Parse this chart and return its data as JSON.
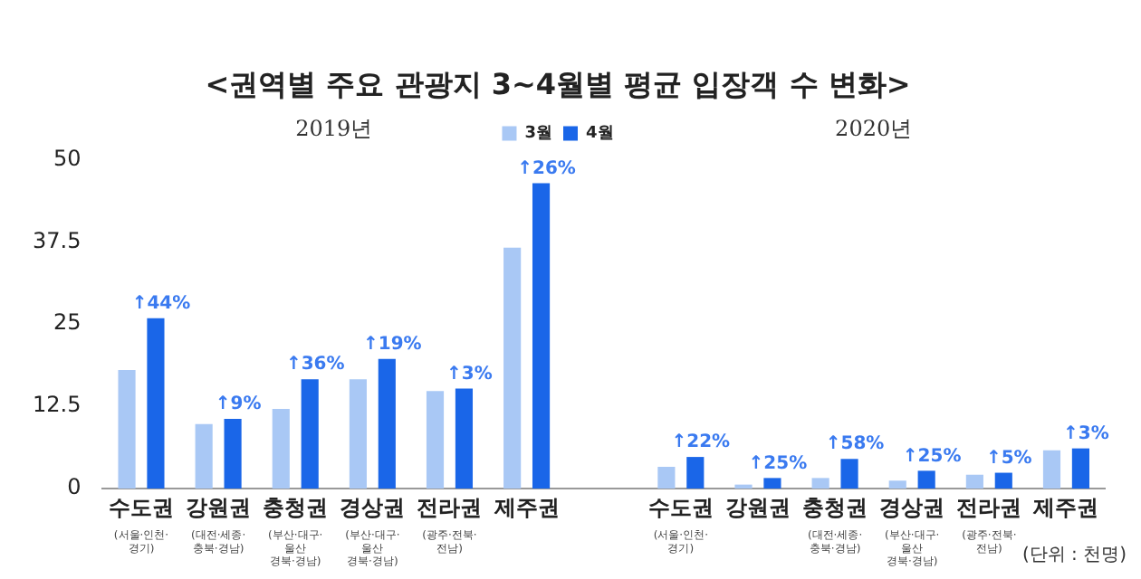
{
  "chart_data": {
    "type": "bar",
    "title": "<권역별 주요 관광지 3~4월별 평균 입장객 수 변화>",
    "categories": [
      "수도권\n(서울·인천·\n경기)",
      "강원권\n(대전·세종·\n충북·경남)",
      "충청권\n(부산·대구·\n울산\n경북·경남)",
      "경상권\n(부산·대구·\n울산\n경북·경남)",
      "전라권\n(광주·전북·\n전남)",
      "제주권",
      null,
      "수도권\n(서울·인천·\n경기)",
      "강원권",
      "충청권\n(대전·세종·\n충북·경남)",
      "경상권\n(부산·대구·\n울산\n경북·경남)",
      "전라권\n(광주·전북·\n전남)",
      "제주권"
    ],
    "series": [
      {
        "name": "3월",
        "color": "#a9c8f5",
        "values": [
          18,
          9.8,
          12.1,
          16.6,
          14.8,
          36.6,
          null,
          3.3,
          0.6,
          1.6,
          1.2,
          2.1,
          5.8
        ]
      },
      {
        "name": "4월",
        "color": "#1a66e8",
        "values": [
          25.9,
          10.6,
          16.6,
          19.7,
          15.2,
          46.4,
          null,
          4.8,
          1.6,
          4.5,
          2.7,
          2.4,
          6.1
        ]
      }
    ],
    "ylim": [
      0,
      50
    ],
    "yticks": [
      0,
      12.5,
      25,
      37.5,
      50
    ],
    "grid": false,
    "legend": "top",
    "annotations": [
      "2019년",
      "2020년",
      "(단위 : 천명)",
      "↑44%",
      "↑9%",
      "↑36%",
      "↑19%",
      "↑3%",
      "↑26%",
      "↑22%",
      "↑25%",
      "↑58%",
      "↑25%",
      "↑5%",
      "↑3%"
    ]
  }
}
